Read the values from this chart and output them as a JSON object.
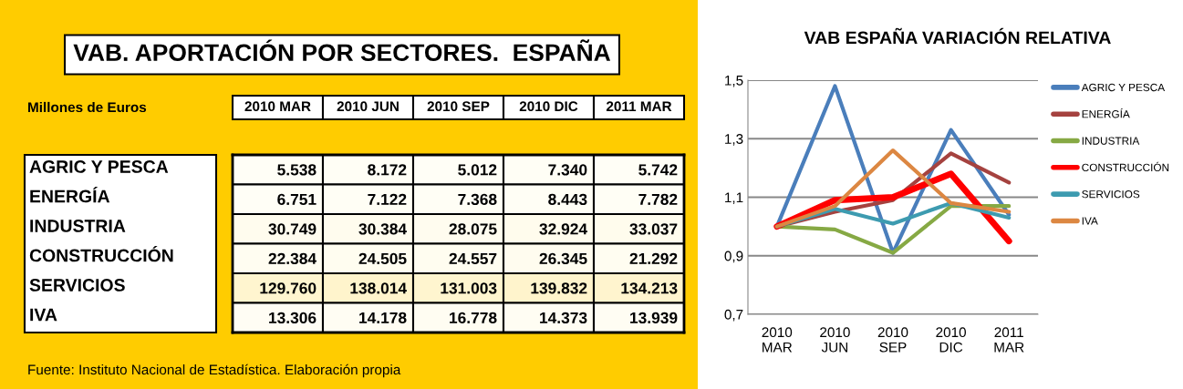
{
  "chart_data": [
    {
      "type": "heatmap",
      "title": "VAB. APORTACIÓN POR SECTORES.  ESPAÑA",
      "subtitle": "Millones de Euros",
      "categories": [
        "2010 MAR",
        "2010 JUN",
        "2010 SEP",
        "2010 DIC",
        "2011 MAR"
      ],
      "y_categories": [
        "AGRIC Y PESCA",
        "ENERGÍA",
        "INDUSTRIA",
        "CONSTRUCCIÓN",
        "SERVICIOS",
        "IVA"
      ],
      "cells": [
        [
          5538,
          8172,
          5012,
          7340,
          5742
        ],
        [
          6751,
          7122,
          7368,
          8443,
          7782
        ],
        [
          30749,
          30384,
          28075,
          32924,
          33037
        ],
        [
          22384,
          24505,
          24557,
          26345,
          21292
        ],
        [
          129760,
          138014,
          131003,
          139832,
          134213
        ],
        [
          13306,
          14178,
          16778,
          14373,
          13939
        ]
      ],
      "cell_labels": [
        [
          "5.538",
          "8.172",
          "5.012",
          "7.340",
          "5.742"
        ],
        [
          "6.751",
          "7.122",
          "7.368",
          "8.443",
          "7.782"
        ],
        [
          "30.749",
          "30.384",
          "28.075",
          "32.924",
          "33.037"
        ],
        [
          "22.384",
          "24.505",
          "24.557",
          "26.345",
          "21.292"
        ],
        [
          "129.760",
          "138.014",
          "131.003",
          "139.832",
          "134.213"
        ],
        [
          "13.306",
          "14.178",
          "16.778",
          "14.373",
          "13.939"
        ]
      ],
      "annotations": [
        "Fuente: Instituto Nacional de Estadística. Elaboración propia"
      ]
    },
    {
      "type": "line",
      "title": "VAB ESPAÑA VARIACIÓN RELATIVA",
      "categories": [
        "2010\nMAR",
        "2010\nJUN",
        "2010\nSEP",
        "2010\nDIC",
        "2011\nMAR"
      ],
      "series": [
        {
          "name": "AGRIC Y PESCA",
          "color": "#4a7ebb",
          "values": [
            1.0,
            1.48,
            0.91,
            1.33,
            1.04
          ]
        },
        {
          "name": "ENERGÍA",
          "color": "#a5423f",
          "values": [
            1.0,
            1.05,
            1.09,
            1.25,
            1.15
          ]
        },
        {
          "name": "INDUSTRIA",
          "color": "#86a944",
          "values": [
            1.0,
            0.99,
            0.91,
            1.07,
            1.07
          ]
        },
        {
          "name": "CONSTRUCCIÓN",
          "color": "#ff0000",
          "values": [
            1.0,
            1.09,
            1.1,
            1.18,
            0.95
          ]
        },
        {
          "name": "SERVICIOS",
          "color": "#3d9bb0",
          "values": [
            1.0,
            1.06,
            1.01,
            1.08,
            1.03
          ]
        },
        {
          "name": "IVA",
          "color": "#dc8742",
          "values": [
            1.0,
            1.07,
            1.26,
            1.08,
            1.05
          ]
        }
      ],
      "ylim": [
        0.7,
        1.5
      ],
      "yticks": [
        {
          "value": 0.7,
          "label": "0,7"
        },
        {
          "value": 0.9,
          "label": "0,9"
        },
        {
          "value": 1.1,
          "label": "1,1"
        },
        {
          "value": 1.3,
          "label": "1,3"
        },
        {
          "value": 1.5,
          "label": "1,5"
        }
      ],
      "grid": "y",
      "legend": "right",
      "marker": "none",
      "line_style": "solid"
    }
  ]
}
